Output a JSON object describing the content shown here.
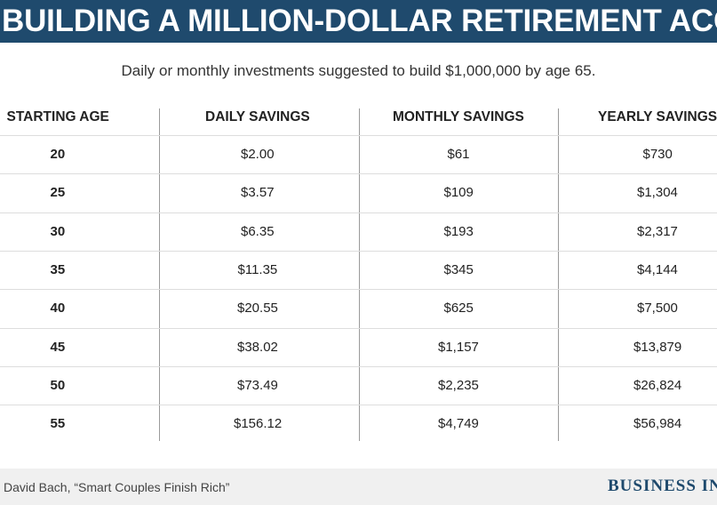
{
  "title": "BUILDING A MILLION-DOLLAR RETIREMENT ACCOUNT",
  "subtitle": "Daily or monthly investments suggested to build $1,000,000 by age 65.",
  "source": "David Bach, “Smart Couples Finish Rich”",
  "logo_text": "BUSINESS INSIDER",
  "colors": {
    "title_bar": "#1f4a6d",
    "title_text": "#ffffff",
    "divider": "#9a9a9a",
    "row_line": "#dddddd",
    "footer_bg": "#f0f0f0",
    "logo": "#1f4a6d"
  },
  "chart_data": {
    "type": "table",
    "title": "BUILDING A MILLION-DOLLAR RETIREMENT ACCOUNT",
    "subtitle": "Daily or monthly investments suggested to build $1,000,000 by age 65.",
    "columns": [
      "STARTING AGE",
      "DAILY SAVINGS",
      "MONTHLY SAVINGS",
      "YEARLY SAVINGS"
    ],
    "rows": [
      [
        "20",
        "$2.00",
        "$61",
        "$730"
      ],
      [
        "25",
        "$3.57",
        "$109",
        "$1,304"
      ],
      [
        "30",
        "$6.35",
        "$193",
        "$2,317"
      ],
      [
        "35",
        "$11.35",
        "$345",
        "$4,144"
      ],
      [
        "40",
        "$20.55",
        "$625",
        "$7,500"
      ],
      [
        "45",
        "$38.02",
        "$1,157",
        "$13,879"
      ],
      [
        "50",
        "$73.49",
        "$2,235",
        "$26,824"
      ],
      [
        "55",
        "$156.12",
        "$4,749",
        "$56,984"
      ]
    ]
  }
}
